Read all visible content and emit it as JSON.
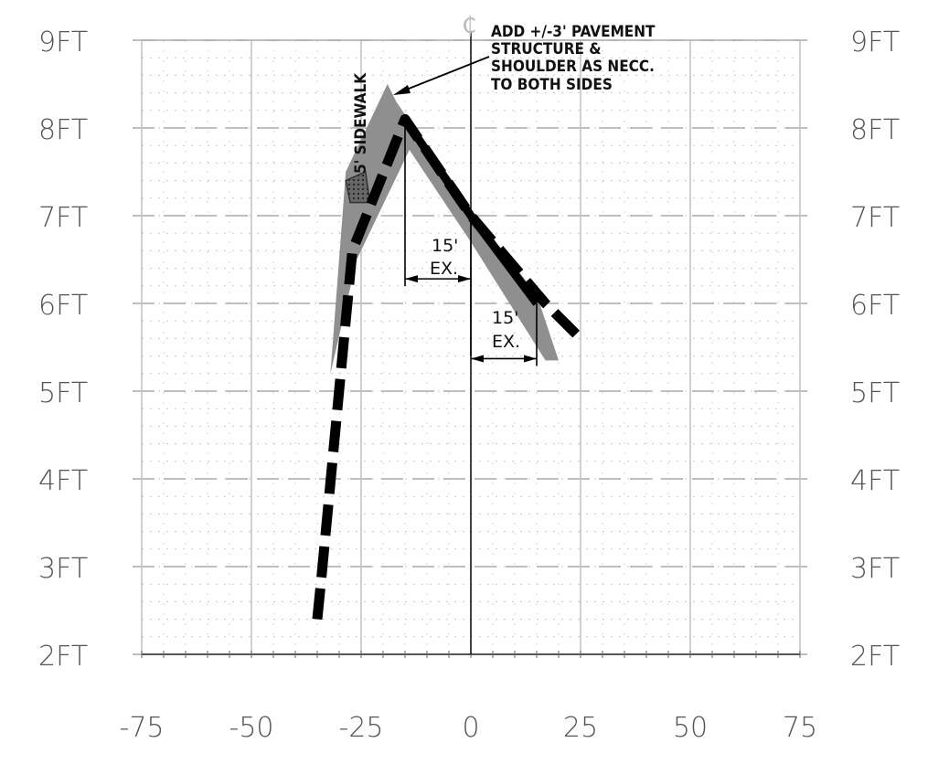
{
  "chart_data": {
    "type": "line",
    "x_ticks": [
      -75,
      -50,
      -25,
      0,
      25,
      50,
      75
    ],
    "x_tick_labels": [
      "-75",
      "-50",
      "-25",
      "0",
      "25",
      "50",
      "75"
    ],
    "y_ticks": [
      2,
      3,
      4,
      5,
      6,
      7,
      8,
      9
    ],
    "y_tick_labels": [
      "2FT",
      "3FT",
      "4FT",
      "5FT",
      "6FT",
      "7FT",
      "8FT",
      "9FT"
    ],
    "xlim": [
      -75,
      75
    ],
    "ylim": [
      2,
      9
    ],
    "grid": true,
    "series": [
      {
        "style": "dashed-thick",
        "x": [
          -35,
          -34,
          -27,
          -15,
          0,
          17,
          24
        ],
        "y": [
          2.4,
          2.9,
          6.6,
          8.1,
          7.0,
          6.0,
          5.65
        ]
      },
      {
        "style": "solid-thick",
        "x": [
          -15,
          0,
          15
        ],
        "y": [
          8.1,
          7.0,
          6.0
        ]
      }
    ],
    "shaded_region": {
      "x": [
        -32,
        -28.5,
        -19,
        -17,
        -2,
        15,
        20,
        17,
        0,
        -14,
        -26,
        -32
      ],
      "y": [
        5.2,
        7.5,
        8.5,
        8.3,
        7.2,
        6.1,
        5.35,
        5.35,
        6.7,
        7.75,
        6.5,
        5.2
      ]
    },
    "sidewalk_box": {
      "x": [
        -28.5,
        -24,
        -23,
        -27.5
      ],
      "y": [
        7.4,
        7.5,
        7.15,
        7.15
      ]
    },
    "centerline_x": 0
  },
  "annotations": {
    "centerline_symbol": "₵",
    "note_lines": [
      "ADD +/-3' PAVEMENT",
      "STRUCTURE &",
      "SHOULDER AS NECC.",
      "TO BOTH SIDES"
    ],
    "sidewalk_label": "5' SIDEWALK",
    "dim_left_value": "15'",
    "dim_left_unit": "EX.",
    "dim_right_value": "15'",
    "dim_right_unit": "EX."
  }
}
